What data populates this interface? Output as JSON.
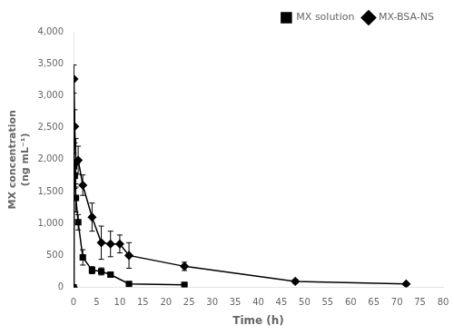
{
  "chart_data": {
    "type": "line",
    "xlabel": "Time (h)",
    "ylabel": "MX concentration\n(ng mL⁻¹)",
    "xlim": [
      0,
      80
    ],
    "ylim": [
      0,
      4000
    ],
    "xticks": [
      0,
      5,
      10,
      15,
      20,
      25,
      30,
      35,
      40,
      45,
      50,
      55,
      60,
      65,
      70,
      75,
      80
    ],
    "yticks": [
      0,
      500,
      {
        "value": 1000,
        "label": "1,000"
      },
      {
        "value": 1500,
        "label": "1,500"
      },
      {
        "value": 2000,
        "label": "2,000"
      },
      {
        "value": 2500,
        "label": "2,500"
      },
      {
        "value": 3000,
        "label": "3,000"
      },
      {
        "value": 3500,
        "label": "3,500"
      },
      {
        "value": 4000,
        "label": "4,000"
      }
    ],
    "grid": false,
    "legend": "upper right",
    "series": [
      {
        "name": "MX solution",
        "color": "#000000",
        "marker": "square",
        "x": [
          0,
          0.083,
          0.25,
          0.5,
          1,
          2,
          4,
          6,
          8,
          12,
          24
        ],
        "values": [
          0,
          1900,
          1750,
          1400,
          1020,
          470,
          270,
          250,
          200,
          55,
          40
        ],
        "errors": [
          0,
          200,
          200,
          220,
          120,
          120,
          55,
          55,
          35,
          20,
          10
        ]
      },
      {
        "name": "MX-BSA-NS",
        "color": "#000000",
        "marker": "diamond",
        "x": [
          0,
          0.083,
          0.25,
          0.5,
          1,
          2,
          4,
          6,
          8,
          10,
          12,
          24,
          48,
          72
        ],
        "values": [
          0,
          3260,
          2520,
          1950,
          1990,
          1600,
          1100,
          700,
          680,
          680,
          500,
          330,
          95,
          55
        ],
        "errors": [
          0,
          220,
          260,
          380,
          220,
          160,
          220,
          260,
          200,
          140,
          200,
          65,
          30,
          15
        ]
      }
    ]
  }
}
